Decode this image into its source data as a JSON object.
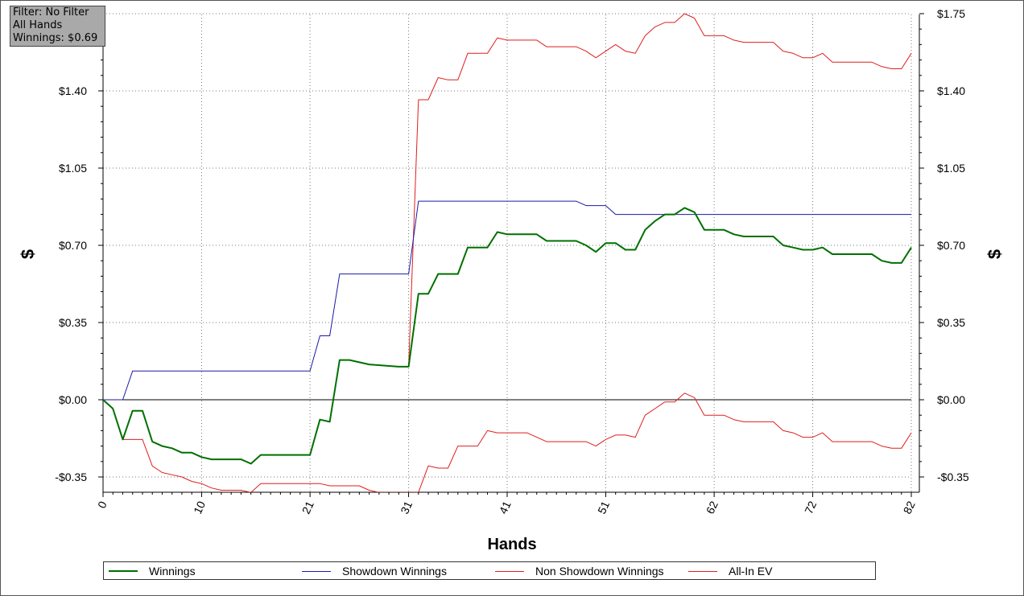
{
  "filter_box": {
    "line1": "Filter: No Filter",
    "line2": "All Hands",
    "line3": "Winnings: $0.69"
  },
  "chart_data": {
    "type": "line",
    "xlabel": "Hands",
    "ylabel_left": "$",
    "ylabel_right": "$",
    "xlim": [
      0,
      82
    ],
    "ylim": [
      -0.42,
      1.75
    ],
    "x_ticks": [
      0,
      10,
      21,
      31,
      41,
      51,
      62,
      72,
      82
    ],
    "y_ticks": [
      {
        "value": -0.35,
        "label": "-$0.35"
      },
      {
        "value": 0.0,
        "label": "$0.00"
      },
      {
        "value": 0.35,
        "label": "$0.35"
      },
      {
        "value": 0.7,
        "label": "$0.70"
      },
      {
        "value": 1.05,
        "label": "$1.05"
      },
      {
        "value": 1.4,
        "label": "$1.40"
      },
      {
        "value": 1.75,
        "label": "$1.75"
      }
    ],
    "right_y_ticks": [
      {
        "value": -0.35,
        "label": "-$0.35"
      },
      {
        "value": 0.0,
        "label": "$0.00"
      },
      {
        "value": 0.35,
        "label": "$0.35"
      },
      {
        "value": 0.7,
        "label": "$0.70"
      },
      {
        "value": 1.05,
        "label": "$1.05"
      },
      {
        "value": 1.4,
        "label": "$1.40"
      },
      {
        "value": 1.75,
        "label": "$1.75"
      }
    ],
    "grid": true,
    "legend_position": "bottom",
    "series": [
      {
        "name": "Winnings",
        "color": "#007000",
        "width": 2,
        "points": [
          [
            0,
            0
          ],
          [
            1,
            -0.04
          ],
          [
            2,
            -0.18
          ],
          [
            3,
            -0.05
          ],
          [
            4,
            -0.05
          ],
          [
            5,
            -0.19
          ],
          [
            6,
            -0.21
          ],
          [
            7,
            -0.22
          ],
          [
            8,
            -0.24
          ],
          [
            9,
            -0.24
          ],
          [
            10,
            -0.26
          ],
          [
            11,
            -0.27
          ],
          [
            12,
            -0.27
          ],
          [
            14,
            -0.27
          ],
          [
            15,
            -0.29
          ],
          [
            16,
            -0.25
          ],
          [
            17,
            -0.25
          ],
          [
            20,
            -0.25
          ],
          [
            21,
            -0.25
          ],
          [
            22,
            -0.09
          ],
          [
            23,
            -0.1
          ],
          [
            24,
            0.18
          ],
          [
            25,
            0.18
          ],
          [
            26,
            0.17
          ],
          [
            27,
            0.16
          ],
          [
            30,
            0.15
          ],
          [
            31,
            0.15
          ],
          [
            32,
            0.48
          ],
          [
            33,
            0.48
          ],
          [
            34,
            0.57
          ],
          [
            35,
            0.57
          ],
          [
            36,
            0.57
          ],
          [
            37,
            0.69
          ],
          [
            38,
            0.69
          ],
          [
            39,
            0.69
          ],
          [
            40,
            0.76
          ],
          [
            41,
            0.75
          ],
          [
            43,
            0.75
          ],
          [
            44,
            0.75
          ],
          [
            45,
            0.72
          ],
          [
            46,
            0.72
          ],
          [
            47,
            0.72
          ],
          [
            48,
            0.72
          ],
          [
            49,
            0.7
          ],
          [
            50,
            0.67
          ],
          [
            51,
            0.71
          ],
          [
            52,
            0.71
          ],
          [
            53,
            0.68
          ],
          [
            54,
            0.68
          ],
          [
            55,
            0.77
          ],
          [
            56,
            0.81
          ],
          [
            57,
            0.84
          ],
          [
            58,
            0.84
          ],
          [
            59,
            0.87
          ],
          [
            60,
            0.85
          ],
          [
            61,
            0.77
          ],
          [
            62,
            0.77
          ],
          [
            63,
            0.77
          ],
          [
            64,
            0.75
          ],
          [
            65,
            0.74
          ],
          [
            66,
            0.74
          ],
          [
            67,
            0.74
          ],
          [
            68,
            0.74
          ],
          [
            69,
            0.7
          ],
          [
            70,
            0.69
          ],
          [
            71,
            0.68
          ],
          [
            72,
            0.68
          ],
          [
            73,
            0.69
          ],
          [
            74,
            0.66
          ],
          [
            75,
            0.66
          ],
          [
            76,
            0.66
          ],
          [
            77,
            0.66
          ],
          [
            78,
            0.66
          ],
          [
            79,
            0.63
          ],
          [
            80,
            0.62
          ],
          [
            81,
            0.62
          ],
          [
            82,
            0.69
          ]
        ]
      },
      {
        "name": "Showdown Winnings",
        "color": "#1a1aa6",
        "width": 1,
        "points": [
          [
            0,
            0
          ],
          [
            2,
            0
          ],
          [
            3,
            0.13
          ],
          [
            21,
            0.13
          ],
          [
            22,
            0.29
          ],
          [
            23,
            0.29
          ],
          [
            24,
            0.57
          ],
          [
            31,
            0.57
          ],
          [
            32,
            0.9
          ],
          [
            48,
            0.9
          ],
          [
            49,
            0.88
          ],
          [
            51,
            0.88
          ],
          [
            52,
            0.84
          ],
          [
            82,
            0.84
          ]
        ]
      },
      {
        "name": "Non Showdown Winnings",
        "color": "#e01e1e",
        "width": 1,
        "points": [
          [
            0,
            0
          ],
          [
            1,
            -0.04
          ],
          [
            2,
            -0.18
          ],
          [
            3,
            -0.18
          ],
          [
            4,
            -0.18
          ],
          [
            5,
            -0.3
          ],
          [
            6,
            -0.33
          ],
          [
            7,
            -0.34
          ],
          [
            8,
            -0.35
          ],
          [
            9,
            -0.37
          ],
          [
            10,
            -0.38
          ],
          [
            11,
            -0.4
          ],
          [
            12,
            -0.41
          ],
          [
            13,
            -0.41
          ],
          [
            14,
            -0.41
          ],
          [
            15,
            -0.42
          ],
          [
            16,
            -0.38
          ],
          [
            17,
            -0.38
          ],
          [
            18,
            -0.38
          ],
          [
            19,
            -0.38
          ],
          [
            20,
            -0.38
          ],
          [
            21,
            -0.38
          ],
          [
            22,
            -0.38
          ],
          [
            23,
            -0.39
          ],
          [
            24,
            -0.39
          ],
          [
            25,
            -0.39
          ],
          [
            26,
            -0.39
          ],
          [
            27,
            -0.41
          ],
          [
            28,
            -0.42
          ],
          [
            32,
            -0.42
          ],
          [
            33,
            -0.3
          ],
          [
            34,
            -0.31
          ],
          [
            35,
            -0.31
          ],
          [
            36,
            -0.21
          ],
          [
            37,
            -0.21
          ],
          [
            38,
            -0.21
          ],
          [
            39,
            -0.14
          ],
          [
            40,
            -0.15
          ],
          [
            41,
            -0.15
          ],
          [
            42,
            -0.15
          ],
          [
            43,
            -0.15
          ],
          [
            44,
            -0.17
          ],
          [
            45,
            -0.19
          ],
          [
            46,
            -0.19
          ],
          [
            47,
            -0.19
          ],
          [
            48,
            -0.19
          ],
          [
            49,
            -0.19
          ],
          [
            50,
            -0.21
          ],
          [
            51,
            -0.18
          ],
          [
            52,
            -0.16
          ],
          [
            53,
            -0.16
          ],
          [
            54,
            -0.17
          ],
          [
            55,
            -0.07
          ],
          [
            56,
            -0.04
          ],
          [
            57,
            -0.01
          ],
          [
            58,
            -0.01
          ],
          [
            59,
            0.03
          ],
          [
            60,
            0.01
          ],
          [
            61,
            -0.07
          ],
          [
            62,
            -0.07
          ],
          [
            63,
            -0.07
          ],
          [
            64,
            -0.09
          ],
          [
            65,
            -0.1
          ],
          [
            66,
            -0.1
          ],
          [
            67,
            -0.1
          ],
          [
            68,
            -0.1
          ],
          [
            69,
            -0.14
          ],
          [
            70,
            -0.15
          ],
          [
            71,
            -0.17
          ],
          [
            72,
            -0.17
          ],
          [
            73,
            -0.15
          ],
          [
            74,
            -0.19
          ],
          [
            75,
            -0.19
          ],
          [
            76,
            -0.19
          ],
          [
            77,
            -0.19
          ],
          [
            78,
            -0.19
          ],
          [
            79,
            -0.21
          ],
          [
            80,
            -0.22
          ],
          [
            81,
            -0.22
          ],
          [
            82,
            -0.15
          ]
        ]
      },
      {
        "name": "All-In EV",
        "color": "#e01e1e",
        "width": 1,
        "points": [
          [
            31,
            0.15
          ],
          [
            32,
            1.36
          ],
          [
            33,
            1.36
          ],
          [
            34,
            1.46
          ],
          [
            35,
            1.45
          ],
          [
            36,
            1.45
          ],
          [
            37,
            1.57
          ],
          [
            38,
            1.57
          ],
          [
            39,
            1.57
          ],
          [
            40,
            1.64
          ],
          [
            41,
            1.63
          ],
          [
            42,
            1.63
          ],
          [
            43,
            1.63
          ],
          [
            44,
            1.63
          ],
          [
            45,
            1.6
          ],
          [
            46,
            1.6
          ],
          [
            47,
            1.6
          ],
          [
            48,
            1.6
          ],
          [
            49,
            1.58
          ],
          [
            50,
            1.55
          ],
          [
            51,
            1.58
          ],
          [
            52,
            1.61
          ],
          [
            53,
            1.58
          ],
          [
            54,
            1.57
          ],
          [
            55,
            1.65
          ],
          [
            56,
            1.69
          ],
          [
            57,
            1.71
          ],
          [
            58,
            1.71
          ],
          [
            59,
            1.75
          ],
          [
            60,
            1.73
          ],
          [
            61,
            1.65
          ],
          [
            62,
            1.65
          ],
          [
            63,
            1.65
          ],
          [
            64,
            1.63
          ],
          [
            65,
            1.62
          ],
          [
            66,
            1.62
          ],
          [
            67,
            1.62
          ],
          [
            68,
            1.62
          ],
          [
            69,
            1.58
          ],
          [
            70,
            1.57
          ],
          [
            71,
            1.55
          ],
          [
            72,
            1.55
          ],
          [
            73,
            1.57
          ],
          [
            74,
            1.53
          ],
          [
            75,
            1.53
          ],
          [
            76,
            1.53
          ],
          [
            77,
            1.53
          ],
          [
            78,
            1.53
          ],
          [
            79,
            1.51
          ],
          [
            80,
            1.5
          ],
          [
            81,
            1.5
          ],
          [
            82,
            1.57
          ]
        ]
      }
    ]
  }
}
